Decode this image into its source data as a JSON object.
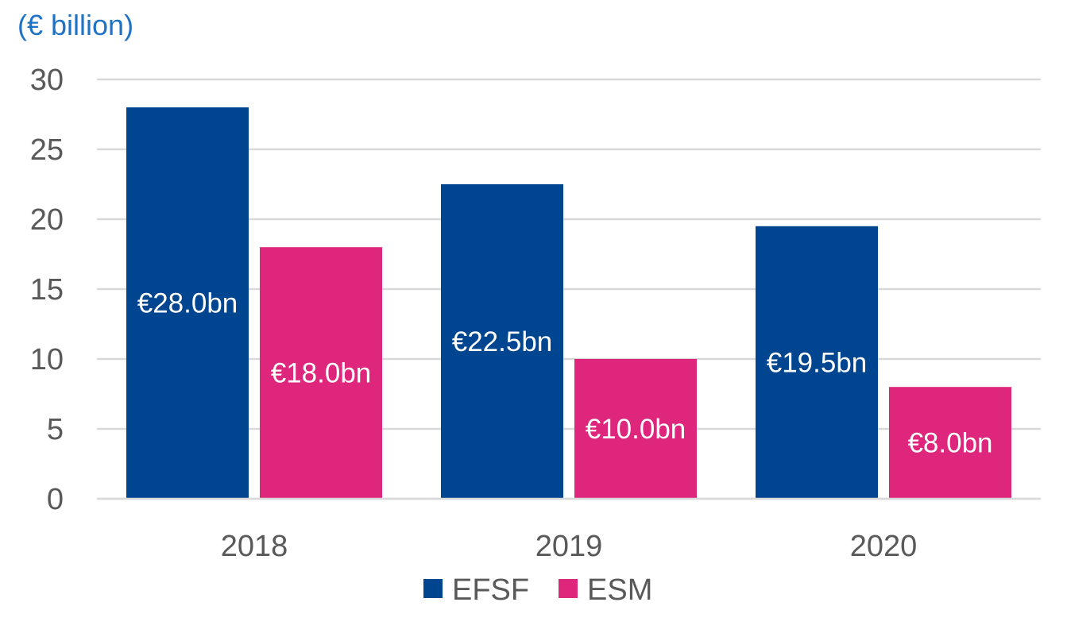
{
  "chart_data": {
    "type": "bar",
    "ylabel": "(€ billion)",
    "categories": [
      "2018",
      "2019",
      "2020"
    ],
    "ylim": [
      0,
      30
    ],
    "yticks": [
      0,
      5,
      10,
      15,
      20,
      25,
      30
    ],
    "grid": true,
    "legend": "bottom",
    "series": [
      {
        "name": "EFSF",
        "color": "#00458F",
        "values": [
          28.0,
          22.5,
          19.5
        ],
        "labels": [
          "€28.0bn",
          "€22.5bn",
          "€19.5bn"
        ]
      },
      {
        "name": "ESM",
        "color": "#DE267D",
        "values": [
          18.0,
          10.0,
          8.0
        ],
        "labels": [
          "€18.0bn",
          "€10.0bn",
          "€8.0bn"
        ]
      }
    ]
  }
}
